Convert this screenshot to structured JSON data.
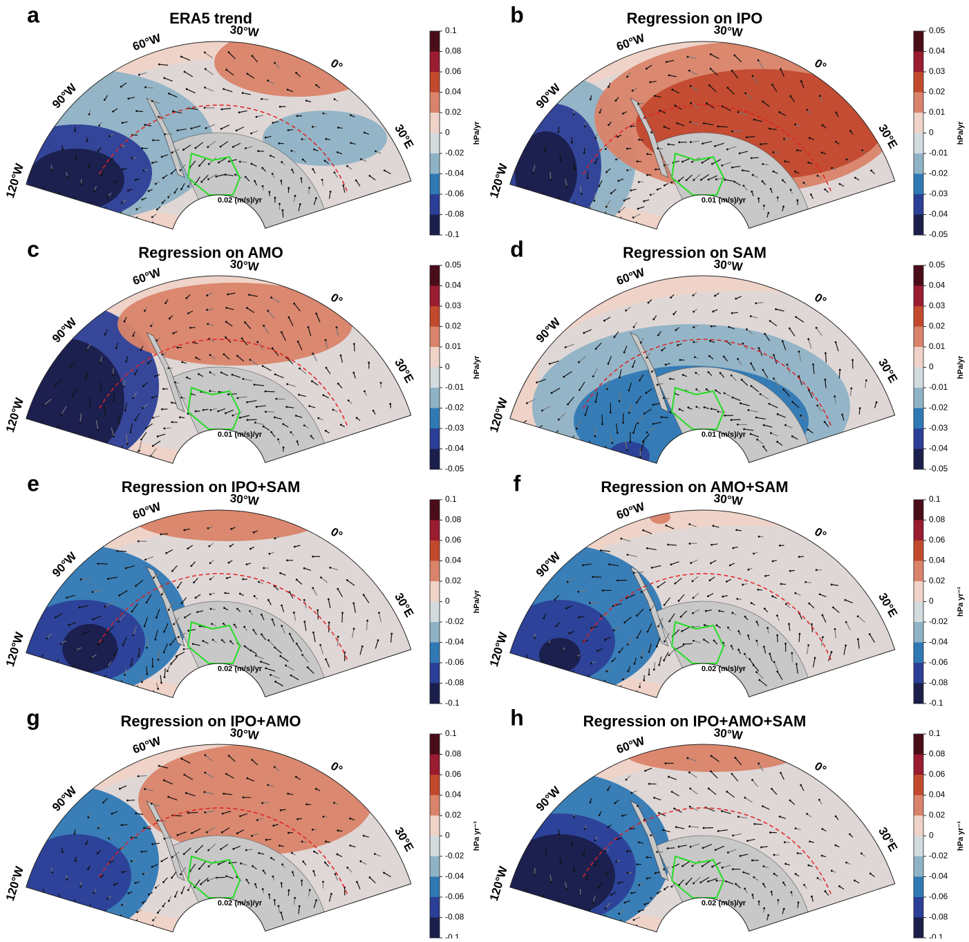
{
  "figure": {
    "panels": [
      {
        "letter": "a",
        "title": "ERA5 trend",
        "lon_labels": [
          "120°W",
          "90°W",
          "60°W",
          "30°W",
          "0°",
          "30°E"
        ],
        "vector_label": "0.02 (m/s)/yr",
        "colorbar": {
          "unit": "hPa/yr",
          "lim": [
            -0.1,
            0.1
          ],
          "ticks": [
            0.1,
            0.08,
            0.06,
            0.04,
            0.02,
            0,
            -0.02,
            -0.04,
            -0.06,
            -0.08,
            -0.1
          ]
        }
      },
      {
        "letter": "b",
        "title": "Regression on IPO",
        "lon_labels": [
          "120°W",
          "90°W",
          "60°W",
          "30°W",
          "0°",
          "30°E"
        ],
        "vector_label": "0.01 (m/s)/yr",
        "colorbar": {
          "unit": "hPa/yr",
          "lim": [
            -0.05,
            0.05
          ],
          "ticks": [
            0.05,
            0.04,
            0.03,
            0.02,
            0.01,
            0,
            -0.01,
            -0.02,
            -0.03,
            -0.04,
            -0.05
          ]
        }
      },
      {
        "letter": "c",
        "title": "Regression on AMO",
        "lon_labels": [
          "120°W",
          "90°W",
          "60°W",
          "30°W",
          "0°",
          "30°E"
        ],
        "vector_label": "0.01 (m/s)/yr",
        "colorbar": {
          "unit": "hPa/yr",
          "lim": [
            -0.05,
            0.05
          ],
          "ticks": [
            0.05,
            0.04,
            0.03,
            0.02,
            0.01,
            0,
            -0.01,
            -0.02,
            -0.03,
            -0.04,
            -0.05
          ]
        }
      },
      {
        "letter": "d",
        "title": "Regression on SAM",
        "lon_labels": [
          "120°W",
          "90°W",
          "60°W",
          "30°W",
          "0°",
          "30°E"
        ],
        "vector_label": "0.01 (m/s)/yr",
        "colorbar": {
          "unit": "hPa/yr",
          "lim": [
            -0.05,
            0.05
          ],
          "ticks": [
            0.05,
            0.04,
            0.03,
            0.02,
            0.01,
            0,
            -0.01,
            -0.02,
            -0.03,
            -0.04,
            -0.05
          ]
        }
      },
      {
        "letter": "e",
        "title": "Regression on IPO+SAM",
        "lon_labels": [
          "120°W",
          "90°W",
          "60°W",
          "30°W",
          "0°",
          "30°E"
        ],
        "vector_label": "0.02 (m/s)/yr",
        "colorbar": {
          "unit": "hPa/yr",
          "lim": [
            -0.1,
            0.1
          ],
          "ticks": [
            0.1,
            0.08,
            0.06,
            0.04,
            0.02,
            0,
            -0.02,
            -0.04,
            -0.06,
            -0.08,
            -0.1
          ]
        }
      },
      {
        "letter": "f",
        "title": "Regression on AMO+SAM",
        "lon_labels": [
          "120°W",
          "90°W",
          "60°W",
          "30°W",
          "0°",
          "30°E"
        ],
        "vector_label": "0.02 (m/s)/yr",
        "colorbar": {
          "unit": "hPa yr⁻¹",
          "lim": [
            -0.1,
            0.1
          ],
          "ticks": [
            0.1,
            0.08,
            0.06,
            0.04,
            0.02,
            0,
            -0.02,
            -0.04,
            -0.06,
            -0.08,
            -0.1
          ]
        }
      },
      {
        "letter": "g",
        "title": "Regression on IPO+AMO",
        "lon_labels": [
          "120°W",
          "90°W",
          "60°W",
          "30°W",
          "0°",
          "30°E"
        ],
        "vector_label": "0.02 (m/s)/yr",
        "colorbar": {
          "unit": "hPa yr⁻¹",
          "lim": [
            -0.1,
            0.1
          ],
          "ticks": [
            0.1,
            0.08,
            0.06,
            0.04,
            0.02,
            0,
            -0.02,
            -0.04,
            -0.06,
            -0.08,
            -0.1
          ]
        }
      },
      {
        "letter": "h",
        "title": "Regression on IPO+AMO+SAM",
        "lon_labels": [
          "120°W",
          "90°W",
          "60°W",
          "30°W",
          "0°",
          "30°E"
        ],
        "vector_label": "0.02 (m/s)/yr",
        "colorbar": {
          "unit": "hPa yr⁻¹",
          "lim": [
            -0.1,
            0.1
          ],
          "ticks": [
            0.1,
            0.08,
            0.06,
            0.04,
            0.02,
            0,
            -0.02,
            -0.04,
            -0.06,
            -0.08,
            -0.1
          ]
        }
      }
    ],
    "colorbar_colors": [
      "#4a0d1a",
      "#9b1b30",
      "#c2492e",
      "#d9846a",
      "#efd3c8",
      "#d3dbdf",
      "#8fb3c6",
      "#2f79b5",
      "#2c3f97",
      "#1b1f4b"
    ]
  }
}
